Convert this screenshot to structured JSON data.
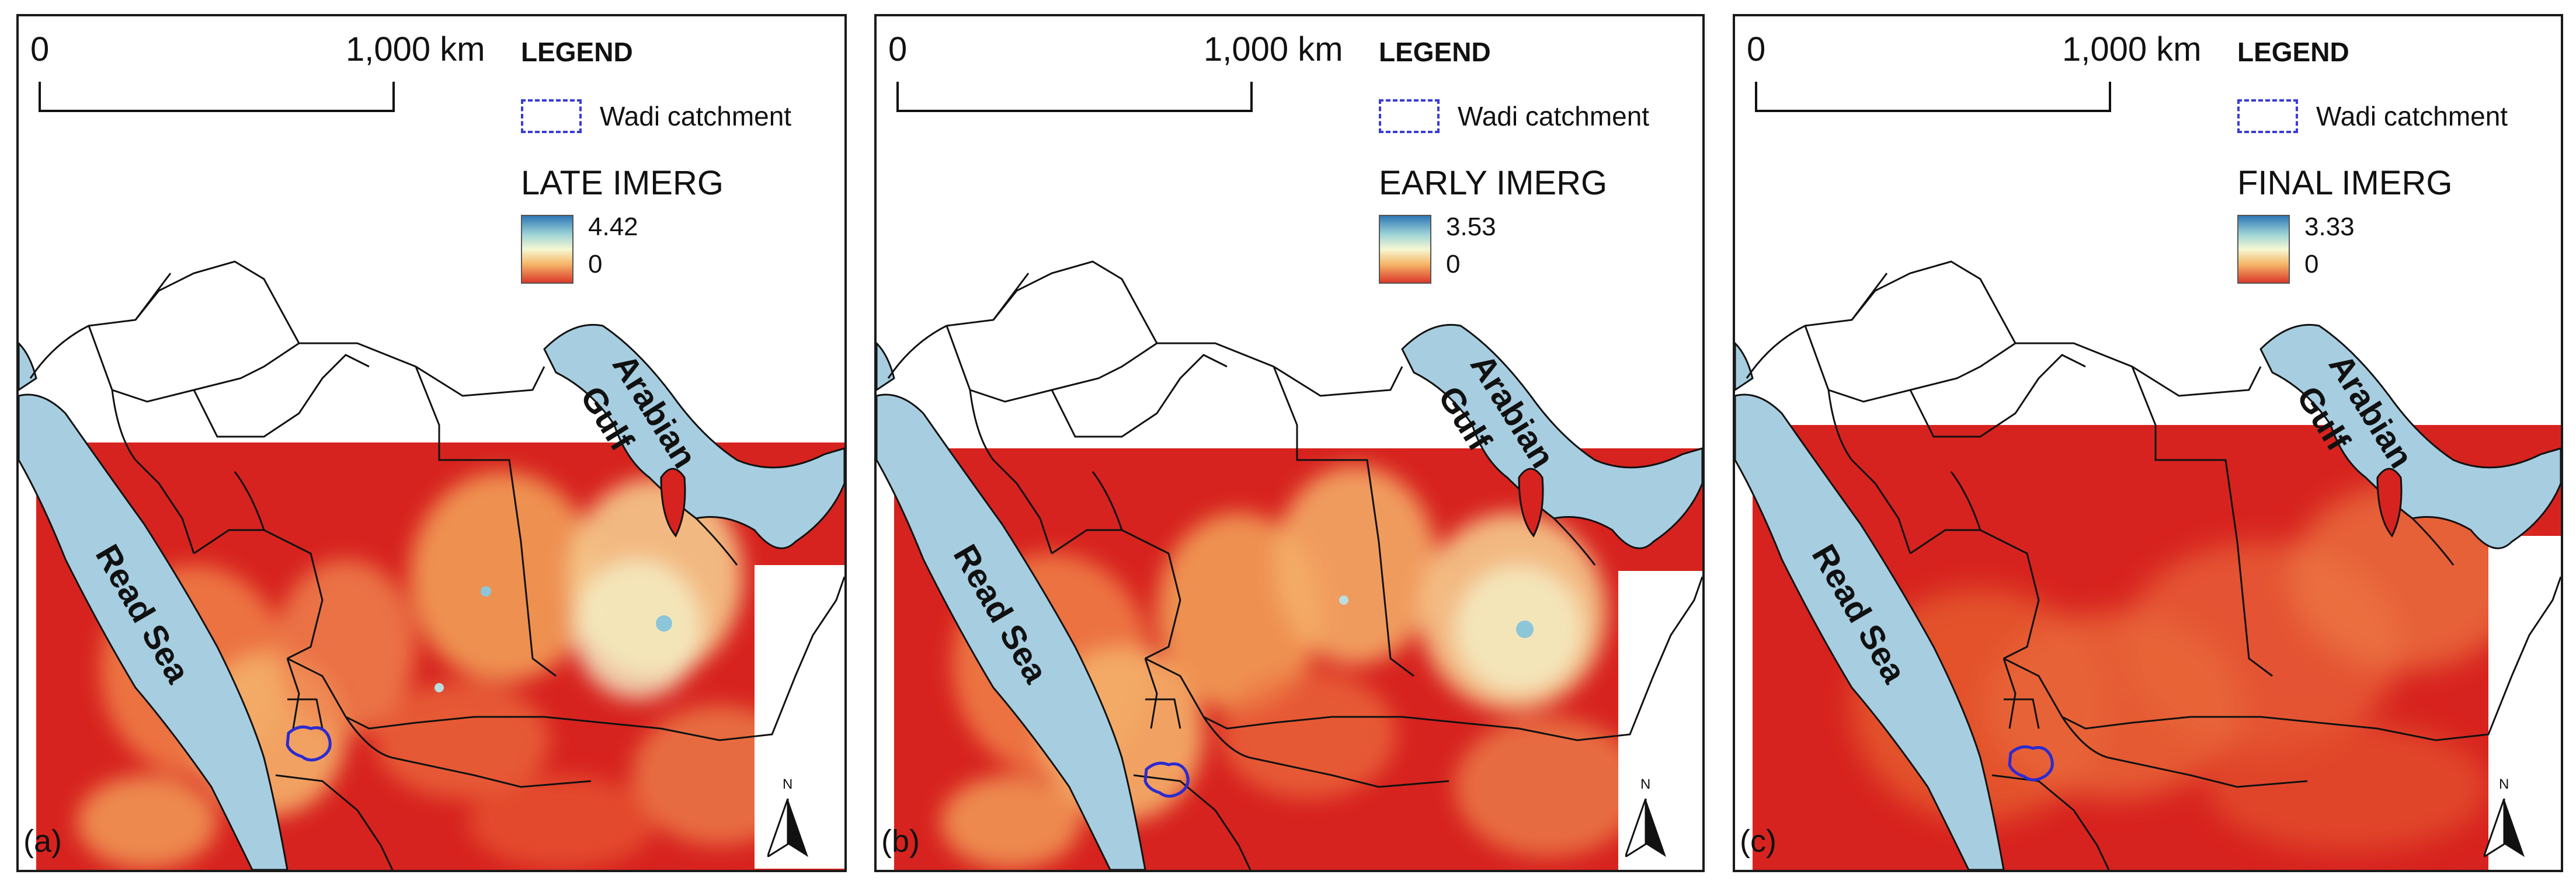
{
  "legend_title": "LEGEND",
  "scale": {
    "start": "0",
    "end": "1,000 km"
  },
  "catchment_label": "Wadi catchment",
  "sea_labels": {
    "red_sea": "Read Sea",
    "gulf_line1": "Arabian",
    "gulf_line2": "Gulf"
  },
  "north_label": "N",
  "panels": [
    {
      "id": "a",
      "panel_label": "(a)",
      "product": "LATE IMERG",
      "max": "4.42",
      "min": "0"
    },
    {
      "id": "b",
      "panel_label": "(b)",
      "product": "EARLY IMERG",
      "max": "3.53",
      "min": "0"
    },
    {
      "id": "c",
      "panel_label": "(c)",
      "product": "FINAL IMERG",
      "max": "3.33",
      "min": "0"
    }
  ],
  "colors": {
    "sea": "#a7cde0",
    "raster_base": "#d7231f",
    "raster_low": "#e24a2a",
    "raster_mid": "#f2a35a",
    "raster_high": "#f4f1c8",
    "raster_peak": "#8cc6d8",
    "catchment": "#2b2bd0",
    "border": "#111111"
  }
}
